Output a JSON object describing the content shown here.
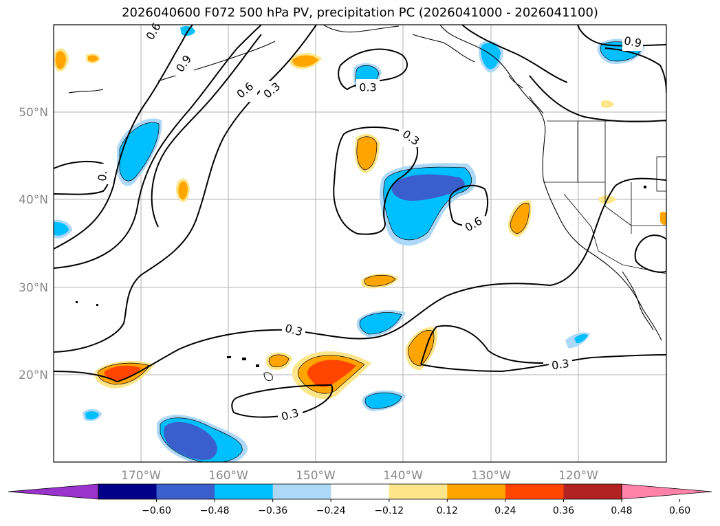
{
  "title": "2026040600 F072 500 hPa PV, precipitation PC (2026041000 - 2026041100)",
  "map": {
    "lon_labels": [
      "170°W",
      "160°W",
      "150°W",
      "140°W",
      "130°W",
      "120°W"
    ],
    "lat_labels": [
      "50°N",
      "40°N",
      "30°N",
      "20°N"
    ],
    "extent": {
      "lon_min": -180,
      "lon_max": -110,
      "lat_min": 10,
      "lat_max": 60
    }
  },
  "pv_contour_labels": [
    "0.",
    "0.6",
    "0.9",
    "0.6",
    "0.3",
    "0.3",
    "0.3",
    "0.6",
    "0.3",
    "0.3",
    "0.3",
    "0.9"
  ],
  "colorbar": {
    "ticks": [
      "−0.60",
      "−0.48",
      "−0.36",
      "−0.24",
      "−0.12",
      "0.12",
      "0.24",
      "0.36",
      "0.48",
      "0.60"
    ],
    "colors": [
      "#9933cc",
      "#00008b",
      "#3a5fcd",
      "#00bfff",
      "#add8f7",
      "#ffffff",
      "#fde68a",
      "#ffa500",
      "#ff4500",
      "#b22222",
      "#ff82ab"
    ]
  }
}
